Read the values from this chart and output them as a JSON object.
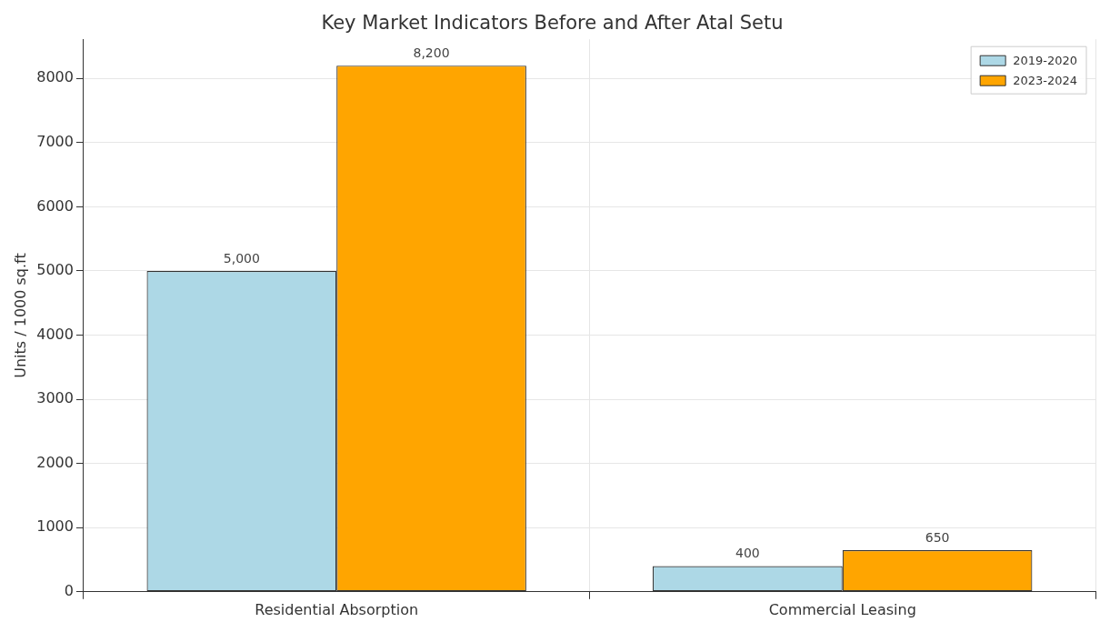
{
  "chart_data": {
    "type": "bar",
    "title": "Key Market Indicators Before and After Atal Setu",
    "ylabel": "Units / 1000 sq.ft",
    "categories": [
      "Residential Absorption",
      "Commercial Leasing"
    ],
    "series": [
      {
        "name": "2019-2020",
        "color": "#add8e6",
        "values": [
          5000,
          400
        ],
        "value_labels": [
          "5,000",
          "400"
        ]
      },
      {
        "name": "2023-2024",
        "color": "#ffa500",
        "values": [
          8200,
          650
        ],
        "value_labels": [
          "8,200",
          "650"
        ]
      }
    ],
    "ylim": [
      0,
      8610
    ],
    "yticks": [
      0,
      1000,
      2000,
      3000,
      4000,
      5000,
      6000,
      7000,
      8000
    ],
    "grid": true,
    "legend": "top right"
  }
}
